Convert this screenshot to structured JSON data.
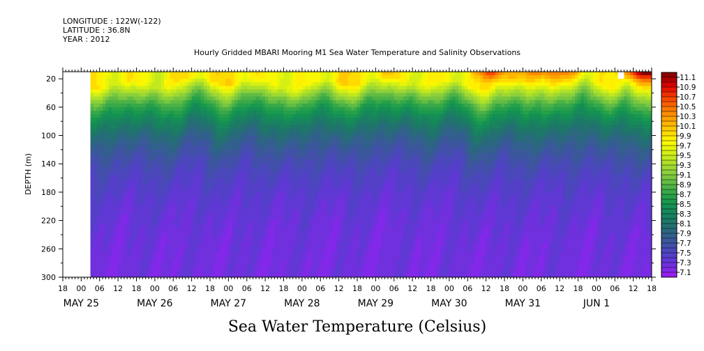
{
  "header": {
    "longitude": "LONGITUDE : 122W(-122)",
    "latitude": "LATITUDE : 36.8N",
    "year": "YEAR : 2012"
  },
  "chart_data": {
    "type": "heatmap",
    "title": "Hourly Gridded MBARI Mooring M1 Sea Water Temperature and Salinity Observations",
    "xlabel": "",
    "ylabel": "DEPTH (m)",
    "bottom_label": "Sea Water Temperature (Celsius)",
    "x_hours_range": [
      -6,
      186
    ],
    "data_start_hour": 3,
    "x_tick_hours": [
      -6,
      0,
      6,
      12,
      18,
      24,
      30,
      36,
      42,
      48,
      54,
      60,
      66,
      72,
      78,
      84,
      90,
      96,
      102,
      108,
      114,
      120,
      126,
      132,
      138,
      144,
      150,
      156,
      162,
      168,
      174,
      180,
      186
    ],
    "x_tick_labels": [
      "18",
      "00",
      "06",
      "12",
      "18",
      "00",
      "06",
      "12",
      "18",
      "00",
      "06",
      "12",
      "18",
      "00",
      "06",
      "12",
      "18",
      "00",
      "06",
      "12",
      "18",
      "00",
      "06",
      "12",
      "18",
      "00",
      "06",
      "12",
      "18",
      "00",
      "06",
      "12",
      "18"
    ],
    "date_labels": [
      {
        "text": "MAY 25",
        "hour": 0
      },
      {
        "text": "MAY 26",
        "hour": 24
      },
      {
        "text": "MAY 27",
        "hour": 48
      },
      {
        "text": "MAY 28",
        "hour": 72
      },
      {
        "text": "MAY 29",
        "hour": 96
      },
      {
        "text": "MAY 30",
        "hour": 120
      },
      {
        "text": "MAY 31",
        "hour": 144
      },
      {
        "text": "JUN  1",
        "hour": 168
      }
    ],
    "y_range": [
      10,
      300
    ],
    "y_reversed": true,
    "y_ticks": [
      20,
      60,
      100,
      140,
      180,
      220,
      260,
      300
    ],
    "y_tick_labels": [
      "20",
      "60",
      "100",
      "140",
      "180",
      "220",
      "260",
      "300"
    ],
    "colorbar": {
      "labels": [
        "11.1",
        "10.9",
        "10.7",
        "10.5",
        "10.3",
        "10.1",
        "9.9",
        "9.7",
        "9.5",
        "9.3",
        "9.1",
        "8.9",
        "8.7",
        "8.5",
        "8.3",
        "8.1",
        "7.9",
        "7.7",
        "7.5",
        "7.3",
        "7.1"
      ],
      "levels_top_to_bottom": [
        11.2,
        11.1,
        11.0,
        10.9,
        10.8,
        10.7,
        10.6,
        10.5,
        10.4,
        10.3,
        10.2,
        10.1,
        10.0,
        9.9,
        9.8,
        9.7,
        9.6,
        9.5,
        9.4,
        9.3,
        9.2,
        9.1,
        9.0,
        8.9,
        8.8,
        8.7,
        8.6,
        8.5,
        8.4,
        8.3,
        8.2,
        8.1,
        8.0,
        7.9,
        7.8,
        7.7,
        7.6,
        7.5,
        7.4,
        7.3,
        7.2,
        7.1
      ],
      "colors_top_to_bottom": [
        "#8b0000",
        "#b00000",
        "#d40000",
        "#e81400",
        "#f03000",
        "#f54a00",
        "#f86000",
        "#fa7800",
        "#fc8c00",
        "#fda000",
        "#feb400",
        "#ffc800",
        "#ffdc00",
        "#ffef00",
        "#f8f800",
        "#e6f50a",
        "#d4ef14",
        "#c2e81e",
        "#b0e028",
        "#9ed832",
        "#8cd03a",
        "#78c640",
        "#62bc44",
        "#4cb246",
        "#38a848",
        "#26a04a",
        "#1a984e",
        "#149054",
        "#16885a",
        "#198060",
        "#1e7868",
        "#237072",
        "#2a687e",
        "#32608c",
        "#3a589a",
        "#4250aa",
        "#4a48ba",
        "#5440c8",
        "#6038d4",
        "#7030de",
        "#8228e8",
        "#9620f0"
      ]
    },
    "temperature_model": {
      "mixed_layer_temp": 9.8,
      "mixed_layer_depth_m": 25,
      "deep_temp": 7.2,
      "deep_scale_m": 60,
      "deep_scale_min": 8.1,
      "deep_scale_max": 8.6,
      "surface_warm_events": [
        {
          "hour": 134,
          "width_h": 5,
          "amp": 0.9
        },
        {
          "hour": 150,
          "width_h": 6,
          "amp": 0.7
        },
        {
          "hour": 160,
          "width_h": 4,
          "amp": 0.6
        },
        {
          "hour": 180,
          "width_h": 4,
          "amp": 1.1
        },
        {
          "hour": 186,
          "width_h": 4,
          "amp": 1.1
        }
      ]
    },
    "missing_cells": [
      {
        "hour_from": 175,
        "hour_to": 177,
        "depth_from": 10,
        "depth_to": 20
      }
    ]
  }
}
